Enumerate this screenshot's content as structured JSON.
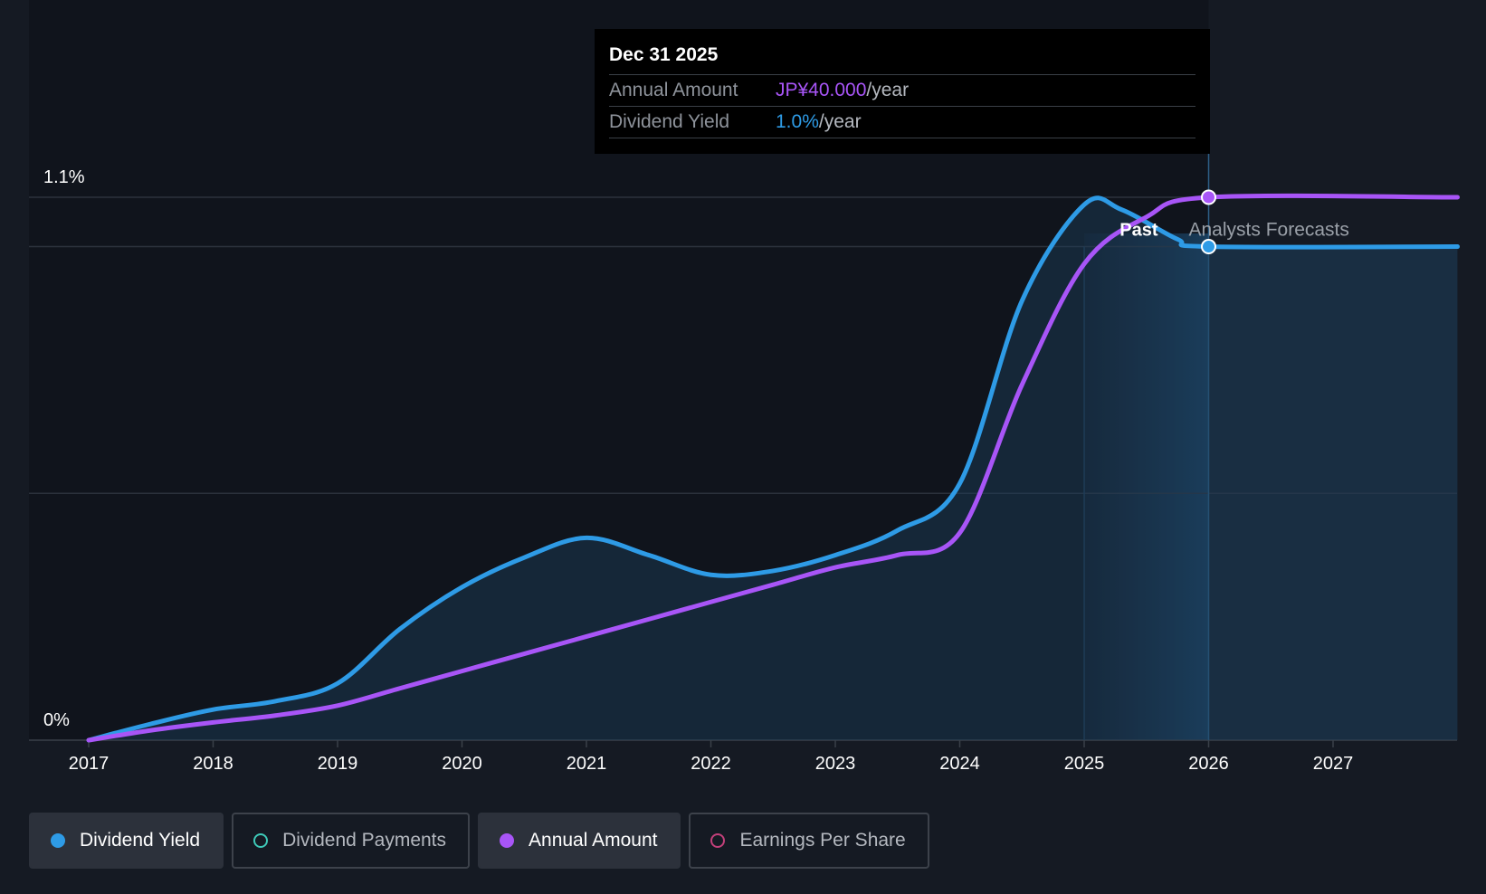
{
  "chart_data": {
    "type": "line",
    "x_ticks": [
      "2017",
      "2018",
      "2019",
      "2020",
      "2021",
      "2022",
      "2023",
      "2024",
      "2025",
      "2026",
      "2027"
    ],
    "y_ticks": [
      "0%",
      "1.1%"
    ],
    "ylim": [
      0,
      1.1
    ],
    "series": [
      {
        "name": "Dividend Yield",
        "color": "#2e9be6",
        "points": [
          [
            2017.0,
            0.0
          ],
          [
            2017.5,
            0.033
          ],
          [
            2018.0,
            0.062
          ],
          [
            2018.5,
            0.079
          ],
          [
            2019.0,
            0.115
          ],
          [
            2019.5,
            0.225
          ],
          [
            2020.0,
            0.31
          ],
          [
            2020.5,
            0.37
          ],
          [
            2021.0,
            0.41
          ],
          [
            2021.5,
            0.375
          ],
          [
            2022.0,
            0.335
          ],
          [
            2022.5,
            0.343
          ],
          [
            2023.0,
            0.375
          ],
          [
            2023.5,
            0.425
          ],
          [
            2024.0,
            0.52
          ],
          [
            2024.5,
            0.89
          ],
          [
            2025.0,
            1.085
          ],
          [
            2025.3,
            1.075
          ],
          [
            2025.75,
            1.015
          ],
          [
            2026.0,
            1.0
          ],
          [
            2028.0,
            1.0
          ]
        ]
      },
      {
        "name": "Annual Amount",
        "color": "#a855f7",
        "points": [
          [
            2017.0,
            0.0
          ],
          [
            2017.5,
            0.02
          ],
          [
            2018.0,
            0.036
          ],
          [
            2018.5,
            0.05
          ],
          [
            2019.0,
            0.07
          ],
          [
            2019.5,
            0.105
          ],
          [
            2020.0,
            0.14
          ],
          [
            2020.5,
            0.175
          ],
          [
            2021.0,
            0.21
          ],
          [
            2021.5,
            0.245
          ],
          [
            2022.0,
            0.28
          ],
          [
            2022.5,
            0.315
          ],
          [
            2023.0,
            0.35
          ],
          [
            2023.5,
            0.375
          ],
          [
            2024.0,
            0.42
          ],
          [
            2024.5,
            0.72
          ],
          [
            2025.0,
            0.965
          ],
          [
            2025.5,
            1.06
          ],
          [
            2026.0,
            1.1
          ],
          [
            2028.0,
            1.1
          ]
        ]
      }
    ],
    "forecast_start": 2026,
    "highlighted_point": "2026",
    "region_labels": {
      "past": "Past",
      "forecast": "Analysts Forecasts"
    },
    "grid": true
  },
  "tooltip": {
    "date": "Dec 31 2025",
    "annual_amount_label": "Annual Amount",
    "annual_amount_value": "JP¥40.000",
    "annual_amount_unit": "/year",
    "dividend_yield_label": "Dividend Yield",
    "dividend_yield_value": "1.0%",
    "dividend_yield_unit": "/year"
  },
  "legend": [
    {
      "label": "Dividend Yield",
      "color": "#2e9be6",
      "active": true
    },
    {
      "label": "Dividend Payments",
      "color": "#3ec9b8",
      "active": false
    },
    {
      "label": "Annual Amount",
      "color": "#a855f7",
      "active": true
    },
    {
      "label": "Earnings Per Share",
      "color": "#c2407a",
      "active": false
    }
  ]
}
